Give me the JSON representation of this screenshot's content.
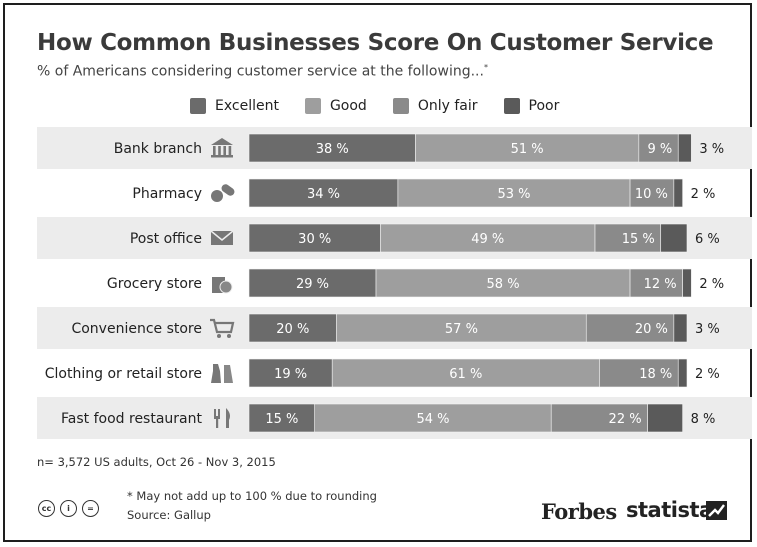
{
  "chart_data": {
    "type": "bar",
    "orientation": "horizontal",
    "stacked": true,
    "title": "How Common Businesses Score On Customer Service",
    "subtitle": "% of Americans considering customer service at the following...",
    "subtitle_mark": "*",
    "categories": [
      "Bank branch",
      "Pharmacy",
      "Post office",
      "Grocery store",
      "Convenience store",
      "Clothing or retail store",
      "Fast food restaurant"
    ],
    "category_icons": [
      "bank-icon",
      "pills-icon",
      "envelope-icon",
      "grocery-bag-icon",
      "shopping-cart-icon",
      "clothing-icon",
      "fork-knife-icon"
    ],
    "series": [
      {
        "name": "Excellent",
        "color": "#6b6b6b",
        "values": [
          38,
          34,
          30,
          29,
          20,
          19,
          15
        ]
      },
      {
        "name": "Good",
        "color": "#9e9e9e",
        "values": [
          51,
          53,
          49,
          58,
          57,
          61,
          54
        ]
      },
      {
        "name": "Only fair",
        "color": "#8a8a8a",
        "values": [
          9,
          10,
          15,
          12,
          20,
          18,
          22
        ]
      },
      {
        "name": "Poor",
        "color": "#5a5a5a",
        "values": [
          3,
          2,
          6,
          2,
          3,
          2,
          8
        ]
      }
    ],
    "legend_position": "top",
    "unit": "%"
  },
  "footer": {
    "sample": "n= 3,572 US adults, Oct 26 - Nov 3, 2015",
    "footnote": "* May not add up to 100 % due to rounding",
    "source": "Source: Gallup",
    "cc_icons": [
      "cc",
      "i",
      "="
    ],
    "brand_forbes": "Forbes",
    "brand_statista": "statista"
  }
}
